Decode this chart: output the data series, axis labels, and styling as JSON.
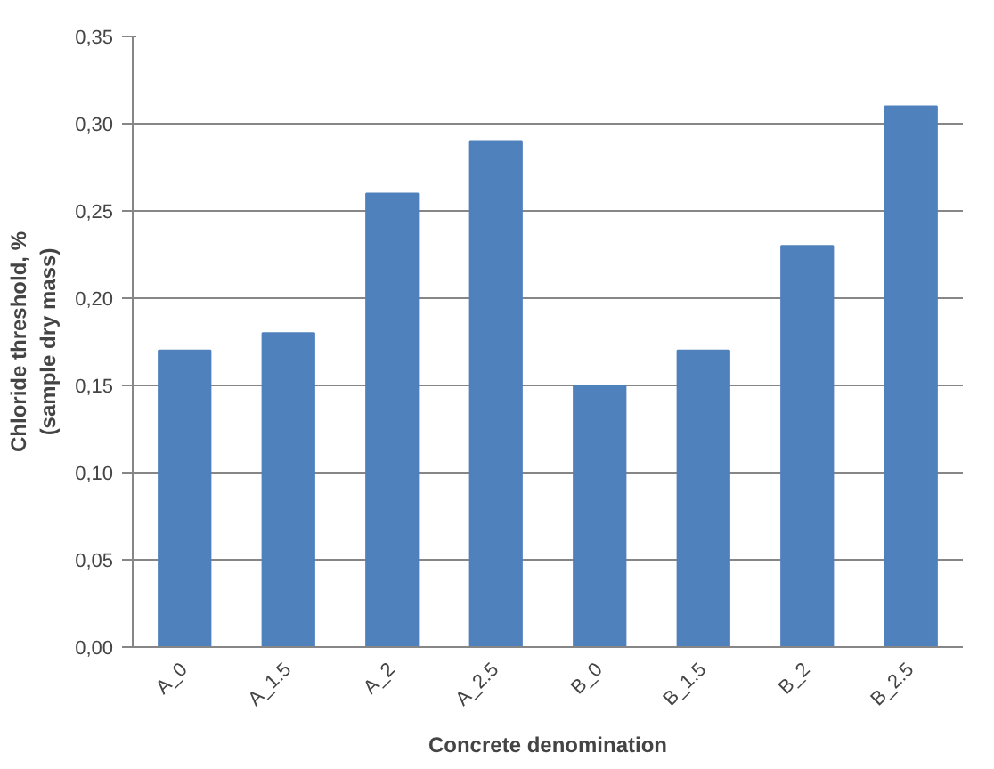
{
  "chart_data": {
    "type": "bar",
    "xlabel": "Concrete denomination",
    "ylabel": "Chloride threshold, %\n(sample dry mass)",
    "categories": [
      "A_0",
      "A_1.5",
      "A_2",
      "A_2.5",
      "B_0",
      "B_1.5",
      "B_2",
      "B_2.5"
    ],
    "values": [
      0.17,
      0.18,
      0.26,
      0.29,
      0.15,
      0.17,
      0.23,
      0.31
    ],
    "color": "#4f81bd",
    "ylim": [
      0,
      0.35
    ],
    "yticks": [
      {
        "value": 0,
        "label": "0,00"
      },
      {
        "value": 0.05,
        "label": "0,05"
      },
      {
        "value": 0.1,
        "label": "0,10"
      },
      {
        "value": 0.15,
        "label": "0,15"
      },
      {
        "value": 0.2,
        "label": "0,20"
      },
      {
        "value": 0.25,
        "label": "0,25"
      },
      {
        "value": 0.3,
        "label": "0,30"
      },
      {
        "value": 0.35,
        "label": "0,35"
      }
    ],
    "grid": "y"
  }
}
